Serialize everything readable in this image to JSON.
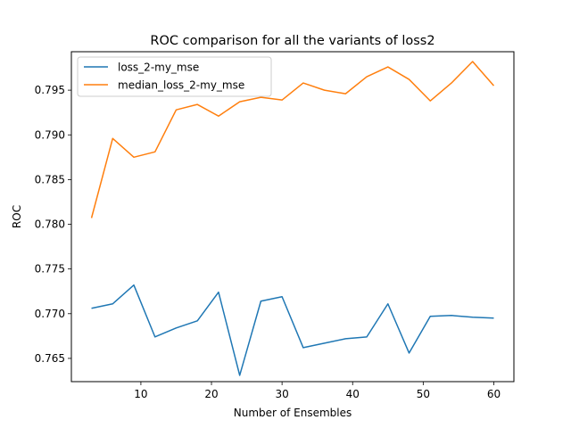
{
  "chart_data": {
    "type": "line",
    "title": "ROC comparison for all the variants of loss2",
    "xlabel": "Number of Ensembles",
    "ylabel": "ROC",
    "xlim": [
      0.15,
      62.85
    ],
    "ylim": [
      0.7624,
      0.7993
    ],
    "xticks": [
      10,
      20,
      30,
      40,
      50,
      60
    ],
    "yticks": [
      0.765,
      0.77,
      0.775,
      0.78,
      0.785,
      0.79,
      0.795
    ],
    "grid": false,
    "legend_position": "upper-left",
    "x": [
      3,
      6,
      9,
      12,
      15,
      18,
      21,
      24,
      27,
      30,
      33,
      36,
      39,
      42,
      45,
      48,
      51,
      54,
      57,
      60
    ],
    "series": [
      {
        "name": "loss_2-my_mse",
        "color": "#1f77b4",
        "values": [
          0.7706,
          0.7711,
          0.7732,
          0.7674,
          0.7684,
          0.7692,
          0.7724,
          0.7631,
          0.7714,
          0.7719,
          0.7662,
          0.7667,
          0.7672,
          0.7674,
          0.7711,
          0.7656,
          0.7697,
          0.7698,
          0.7696,
          0.7695
        ]
      },
      {
        "name": "median_loss_2-my_mse",
        "color": "#ff7f0e",
        "values": [
          0.7807,
          0.7896,
          0.7875,
          0.7881,
          0.7928,
          0.7934,
          0.7921,
          0.7937,
          0.7942,
          0.7939,
          0.7958,
          0.795,
          0.7946,
          0.7965,
          0.7976,
          0.7962,
          0.7938,
          0.7958,
          0.7982,
          0.7955
        ]
      }
    ]
  }
}
